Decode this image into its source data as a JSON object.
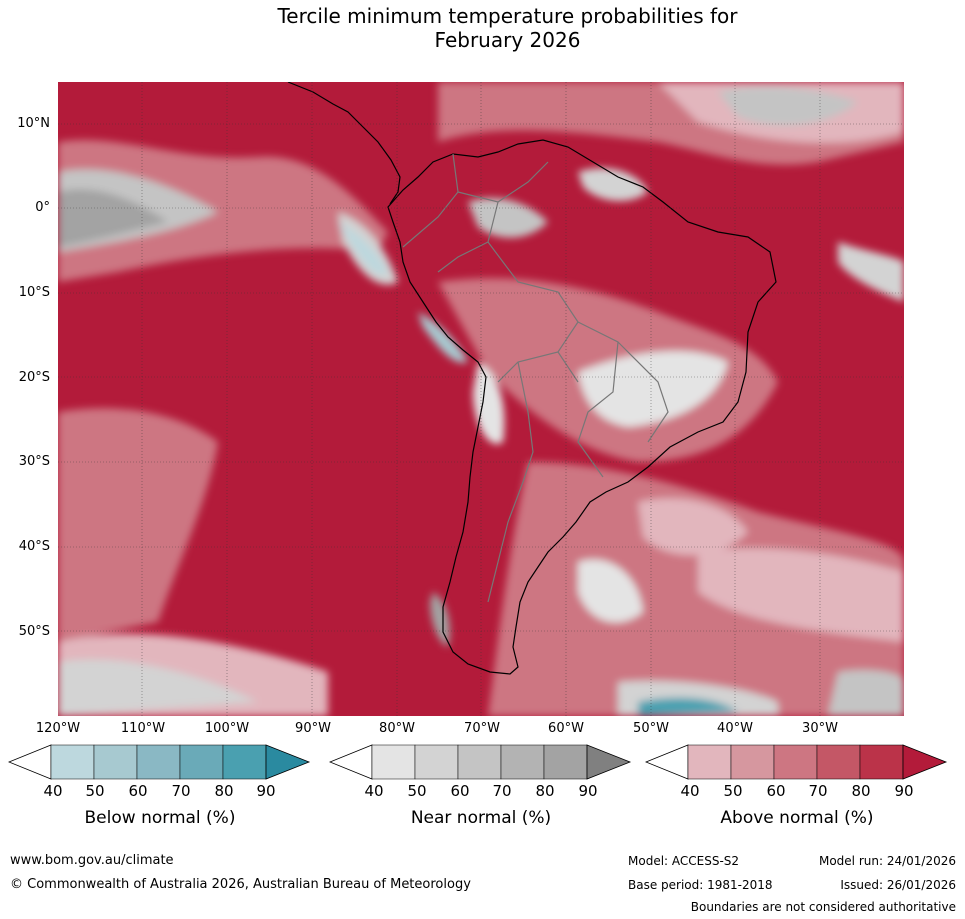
{
  "title_line1": "Tercile minimum temperature probabilities for",
  "title_line2": "February 2026",
  "lat_labels": [
    "10°N",
    "0°",
    "10°S",
    "20°S",
    "30°S",
    "40°S",
    "50°S"
  ],
  "lon_labels": [
    "120°W",
    "110°W",
    "100°W",
    "90°W",
    "80°W",
    "70°W",
    "60°W",
    "50°W",
    "40°W",
    "30°W"
  ],
  "colorbars": [
    {
      "label": "Below normal (%)",
      "ticks": [
        "40",
        "50",
        "60",
        "70",
        "80",
        "90"
      ],
      "colors": [
        "#ffffff",
        "#bdd8de",
        "#a7c9d0",
        "#8ab8c4",
        "#6aaab8",
        "#4aa0b0",
        "#2a8aa0"
      ]
    },
    {
      "label": "Near normal (%)",
      "ticks": [
        "40",
        "50",
        "60",
        "70",
        "80",
        "90"
      ],
      "colors": [
        "#ffffff",
        "#e4e4e4",
        "#d3d3d3",
        "#c4c4c4",
        "#b3b3b3",
        "#a3a3a3",
        "#808080"
      ]
    },
    {
      "label": "Above normal (%)",
      "ticks": [
        "40",
        "50",
        "60",
        "70",
        "80",
        "90"
      ],
      "colors": [
        "#ffffff",
        "#e2b6bd",
        "#d6979f",
        "#cd7682",
        "#c45766",
        "#bb3349",
        "#b31b3a"
      ]
    }
  ],
  "footer": {
    "website": "www.bom.gov.au/climate",
    "copyright": "© Commonwealth of Australia 2026, Australian Bureau of Meteorology",
    "model": "Model: ACCESS-S2",
    "base_period": "Base period: 1981-2018",
    "model_run": "Model run: 24/01/2026",
    "issued": "Issued: 26/01/2026",
    "disclaimer": "Boundaries are not considered authoritative"
  }
}
